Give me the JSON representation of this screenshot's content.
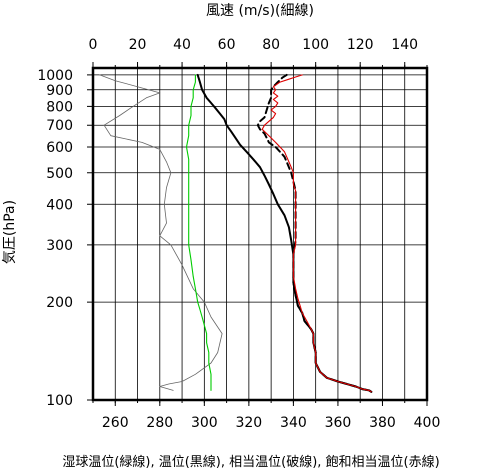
{
  "chart_data": {
    "type": "line",
    "top_axis_label": "風速 (m/s)(細線)",
    "bottom_axis_label": "湿球温位(緑線), 温位(黒線), 相当温位(破線), 飽和相当温位(赤線)",
    "ylabel": "気圧(hPa)",
    "x_top": {
      "range": [
        0,
        150
      ],
      "ticks": [
        0,
        20,
        40,
        60,
        80,
        100,
        120,
        140
      ]
    },
    "x_bottom": {
      "range": [
        250,
        400
      ],
      "ticks": [
        260,
        280,
        300,
        320,
        340,
        360,
        380,
        400
      ]
    },
    "y": {
      "scale": "log",
      "range": [
        1050,
        100
      ],
      "ticks": [
        100,
        200,
        300,
        400,
        500,
        600,
        700,
        800,
        900,
        1000
      ]
    },
    "grid": true,
    "series": [
      {
        "key": "wind",
        "axis": "top",
        "color": "#666666",
        "style": "thin",
        "points": [
          [
            3,
            1000
          ],
          [
            10,
            960
          ],
          [
            20,
            920
          ],
          [
            30,
            880
          ],
          [
            24,
            850
          ],
          [
            18,
            800
          ],
          [
            12,
            750
          ],
          [
            5,
            700
          ],
          [
            8,
            650
          ],
          [
            22,
            620
          ],
          [
            30,
            590
          ],
          [
            33,
            540
          ],
          [
            35,
            500
          ],
          [
            33,
            450
          ],
          [
            32,
            400
          ],
          [
            33,
            350
          ],
          [
            30,
            320
          ],
          [
            35,
            300
          ],
          [
            40,
            260
          ],
          [
            45,
            220
          ],
          [
            50,
            200
          ],
          [
            53,
            180
          ],
          [
            58,
            160
          ],
          [
            56,
            140
          ],
          [
            53,
            130
          ],
          [
            46,
            120
          ],
          [
            40,
            114
          ],
          [
            34,
            112
          ],
          [
            30,
            110
          ],
          [
            36,
            107
          ]
        ]
      },
      {
        "key": "wet_bulb_theta",
        "axis": "bottom",
        "color": "#00cc00",
        "style": "solid",
        "points": [
          [
            296,
            1000
          ],
          [
            296,
            950
          ],
          [
            295,
            900
          ],
          [
            295,
            850
          ],
          [
            294,
            800
          ],
          [
            294,
            750
          ],
          [
            293,
            700
          ],
          [
            293,
            650
          ],
          [
            292,
            600
          ],
          [
            293,
            550
          ],
          [
            293,
            500
          ],
          [
            293,
            450
          ],
          [
            293,
            400
          ],
          [
            293,
            350
          ],
          [
            293,
            300
          ],
          [
            294,
            270
          ],
          [
            295,
            240
          ],
          [
            296,
            220
          ],
          [
            297,
            200
          ],
          [
            298,
            190
          ],
          [
            299,
            180
          ],
          [
            300,
            170
          ],
          [
            301,
            160
          ],
          [
            301,
            150
          ],
          [
            302,
            140
          ],
          [
            302,
            130
          ],
          [
            303,
            120
          ],
          [
            303,
            115
          ],
          [
            303,
            110
          ],
          [
            303,
            107
          ]
        ]
      },
      {
        "key": "theta",
        "axis": "bottom",
        "color": "#000000",
        "style": "solid",
        "points": [
          [
            297,
            1000
          ],
          [
            298,
            950
          ],
          [
            299,
            900
          ],
          [
            301,
            850
          ],
          [
            303,
            820
          ],
          [
            305,
            790
          ],
          [
            307,
            760
          ],
          [
            309,
            730
          ],
          [
            310,
            700
          ],
          [
            312,
            670
          ],
          [
            314,
            640
          ],
          [
            316,
            610
          ],
          [
            319,
            580
          ],
          [
            322,
            550
          ],
          [
            325,
            520
          ],
          [
            327,
            490
          ],
          [
            329,
            460
          ],
          [
            331,
            430
          ],
          [
            333,
            400
          ],
          [
            336,
            370
          ],
          [
            338,
            340
          ],
          [
            339,
            310
          ],
          [
            340,
            280
          ],
          [
            340,
            250
          ],
          [
            340,
            230
          ],
          [
            341,
            210
          ],
          [
            342,
            195
          ],
          [
            344,
            185
          ],
          [
            345,
            175
          ],
          [
            348,
            165
          ],
          [
            349,
            160
          ],
          [
            349,
            150
          ],
          [
            350,
            140
          ],
          [
            350,
            130
          ],
          [
            352,
            122
          ],
          [
            355,
            117
          ],
          [
            360,
            114
          ],
          [
            364,
            112
          ],
          [
            368,
            110
          ],
          [
            371,
            108
          ],
          [
            374,
            107
          ],
          [
            375,
            106
          ]
        ]
      },
      {
        "key": "equivalent_theta",
        "axis": "bottom",
        "color": "#000000",
        "style": "dashed",
        "points": [
          [
            337,
            1000
          ],
          [
            335,
            980
          ],
          [
            333,
            950
          ],
          [
            331,
            920
          ],
          [
            330,
            900
          ],
          [
            330,
            880
          ],
          [
            330,
            850
          ],
          [
            329,
            820
          ],
          [
            328,
            780
          ],
          [
            327,
            740
          ],
          [
            325,
            720
          ],
          [
            324,
            700
          ],
          [
            325,
            680
          ],
          [
            327,
            660
          ],
          [
            328,
            640
          ],
          [
            329,
            620
          ],
          [
            332,
            600
          ],
          [
            334,
            580
          ],
          [
            336,
            560
          ],
          [
            337,
            540
          ],
          [
            338,
            520
          ],
          [
            339,
            500
          ],
          [
            340,
            470
          ],
          [
            341,
            440
          ],
          [
            341,
            400
          ],
          [
            341,
            370
          ],
          [
            341,
            340
          ],
          [
            341,
            310
          ],
          [
            340,
            280
          ],
          [
            340,
            250
          ],
          [
            340,
            230
          ],
          [
            341,
            210
          ],
          [
            342,
            195
          ],
          [
            344,
            185
          ],
          [
            345,
            175
          ],
          [
            348,
            165
          ],
          [
            349,
            160
          ],
          [
            349,
            150
          ],
          [
            350,
            140
          ],
          [
            350,
            130
          ],
          [
            352,
            122
          ],
          [
            355,
            117
          ],
          [
            360,
            114
          ],
          [
            364,
            112
          ],
          [
            368,
            110
          ],
          [
            371,
            108
          ],
          [
            374,
            107
          ],
          [
            375,
            106
          ]
        ]
      },
      {
        "key": "saturated_equivalent_theta",
        "axis": "bottom",
        "color": "#dd0000",
        "style": "solid",
        "points": [
          [
            344,
            1000
          ],
          [
            341,
            985
          ],
          [
            338,
            970
          ],
          [
            334,
            950
          ],
          [
            331,
            920
          ],
          [
            332,
            900
          ],
          [
            331,
            880
          ],
          [
            333,
            860
          ],
          [
            331,
            840
          ],
          [
            333,
            820
          ],
          [
            332,
            800
          ],
          [
            330,
            780
          ],
          [
            332,
            760
          ],
          [
            331,
            740
          ],
          [
            329,
            720
          ],
          [
            327,
            700
          ],
          [
            326,
            680
          ],
          [
            328,
            660
          ],
          [
            330,
            640
          ],
          [
            332,
            620
          ],
          [
            334,
            600
          ],
          [
            336,
            580
          ],
          [
            337,
            560
          ],
          [
            338,
            540
          ],
          [
            339,
            520
          ],
          [
            340,
            500
          ],
          [
            340,
            480
          ],
          [
            340,
            460
          ],
          [
            341,
            440
          ],
          [
            341,
            420
          ],
          [
            341,
            400
          ],
          [
            341,
            380
          ],
          [
            341,
            360
          ],
          [
            341,
            340
          ],
          [
            341,
            320
          ],
          [
            341,
            300
          ],
          [
            340,
            280
          ],
          [
            340,
            260
          ],
          [
            340,
            240
          ],
          [
            341,
            220
          ],
          [
            342,
            205
          ],
          [
            343,
            195
          ],
          [
            344,
            185
          ],
          [
            346,
            175
          ],
          [
            348,
            165
          ],
          [
            349,
            160
          ],
          [
            349,
            150
          ],
          [
            350,
            140
          ],
          [
            350,
            130
          ],
          [
            352,
            122
          ],
          [
            355,
            117
          ],
          [
            360,
            114
          ],
          [
            364,
            112
          ],
          [
            368,
            110
          ],
          [
            371,
            108
          ],
          [
            374,
            107
          ],
          [
            375,
            106
          ]
        ]
      }
    ]
  }
}
